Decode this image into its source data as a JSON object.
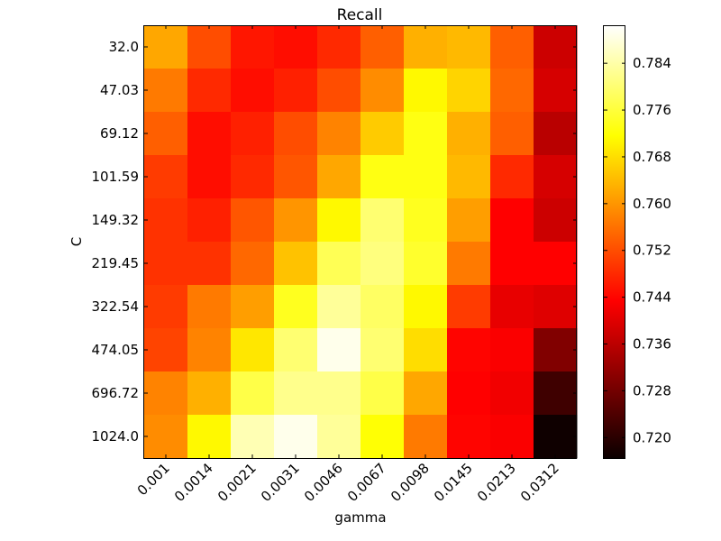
{
  "chart_data": {
    "type": "heatmap",
    "title": "Recall",
    "xlabel": "gamma",
    "ylabel": "C",
    "x": [
      "0.001",
      "0.0014",
      "0.0021",
      "0.0031",
      "0.0046",
      "0.0067",
      "0.0098",
      "0.0145",
      "0.0213",
      "0.0312"
    ],
    "y": [
      "32.0",
      "47.03",
      "69.12",
      "101.59",
      "149.32",
      "219.45",
      "322.54",
      "474.05",
      "696.72",
      "1024.0"
    ],
    "values": [
      [
        0.762,
        0.752,
        0.746,
        0.745,
        0.748,
        0.754,
        0.763,
        0.764,
        0.754,
        0.737
      ],
      [
        0.757,
        0.748,
        0.745,
        0.747,
        0.752,
        0.759,
        0.771,
        0.767,
        0.755,
        0.738
      ],
      [
        0.754,
        0.745,
        0.747,
        0.752,
        0.758,
        0.766,
        0.773,
        0.763,
        0.754,
        0.735
      ],
      [
        0.75,
        0.745,
        0.748,
        0.753,
        0.762,
        0.773,
        0.773,
        0.764,
        0.748,
        0.738
      ],
      [
        0.749,
        0.747,
        0.753,
        0.76,
        0.771,
        0.78,
        0.774,
        0.761,
        0.743,
        0.737
      ],
      [
        0.749,
        0.749,
        0.755,
        0.765,
        0.778,
        0.781,
        0.775,
        0.757,
        0.743,
        0.743
      ],
      [
        0.75,
        0.757,
        0.761,
        0.774,
        0.783,
        0.779,
        0.771,
        0.75,
        0.74,
        0.739
      ],
      [
        0.751,
        0.758,
        0.769,
        0.78,
        0.789,
        0.78,
        0.768,
        0.744,
        0.742,
        0.729
      ],
      [
        0.758,
        0.763,
        0.777,
        0.782,
        0.782,
        0.777,
        0.762,
        0.743,
        0.741,
        0.722
      ],
      [
        0.759,
        0.771,
        0.785,
        0.789,
        0.783,
        0.772,
        0.757,
        0.744,
        0.742,
        0.717
      ]
    ],
    "colormap": "hot",
    "colorbar": {
      "min": 0.7165,
      "max": 0.7905,
      "ticks": [
        "0.720",
        "0.728",
        "0.736",
        "0.744",
        "0.752",
        "0.760",
        "0.768",
        "0.776",
        "0.784"
      ]
    }
  }
}
